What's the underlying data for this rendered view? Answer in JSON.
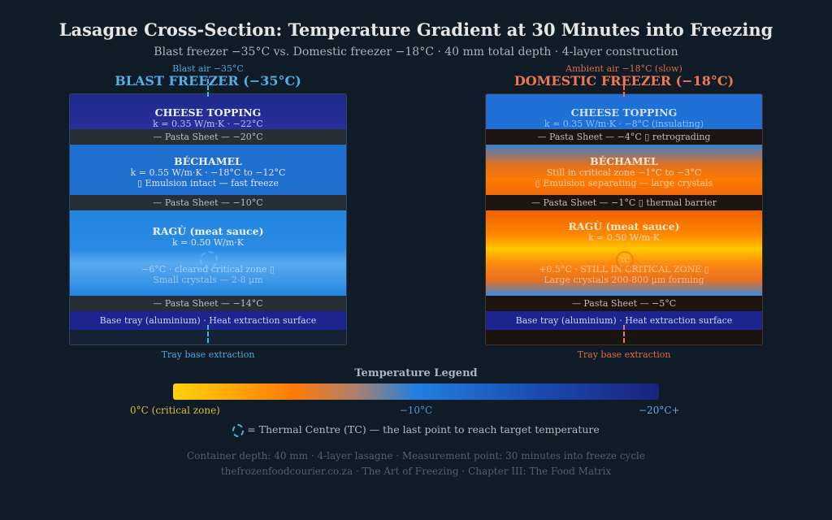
{
  "title": "Lasagne Cross-Section: Temperature Gradient at 30 Minutes into Freezing",
  "subtitle": "Blast freezer −35°C vs. Domestic freezer −18°C · 40 mm total depth · 4-layer construction",
  "blast": {
    "air": "Blast air −35°C",
    "heading": "BLAST FREEZER (−35°C)",
    "color": "#4fb0e8",
    "cheese_title": "CHEESE TOPPING",
    "cheese_sub": "k = 0.35 W/m·K · −22°C",
    "pasta1": "— Pasta Sheet — −20°C",
    "bech_title": "BÉCHAMEL",
    "bech_sub1": "k = 0.55 W/m·K · −18°C to −12°C",
    "bech_sub2": "▯ Emulsion intact — fast freeze",
    "pasta2": "— Pasta Sheet — −10°C",
    "ragu_title": "RAGÙ (meat sauce)",
    "ragu_sub": "k = 0.50 W/m·K",
    "ragu_note1": "−6°C · cleared critical zone ▯",
    "ragu_note2": "Small crystals — 2-8 μm",
    "pasta3": "— Pasta Sheet — −14°C",
    "base": "Base tray (aluminium) · Heat extraction surface",
    "tray": "Tray base extraction"
  },
  "domestic": {
    "air": "Ambient air −18°C (slow)",
    "heading": "DOMESTIC FREEZER (−18°C)",
    "color": "#f07850",
    "cheese_title": "CHEESE TOPPING",
    "cheese_sub": "k = 0.35 W/m·K · −8°C (insulating)",
    "pasta1": "— Pasta Sheet — −4°C ▯ retrograding",
    "bech_title": "BÉCHAMEL",
    "bech_sub1": "Still in critical zone −1°C to −3°C",
    "bech_sub2": "▯ Emulsion separating — large crystals",
    "pasta2": "— Pasta Sheet — −1°C ▯ thermal barrier",
    "ragu_title": "RAGÙ (meat sauce)",
    "ragu_sub": "k = 0.50 W/m·K",
    "tc": "TC",
    "ragu_note1": "+0.5°C · STILL IN CRITICAL ZONE ▯",
    "ragu_note2": "Large crystals 200-800 μm forming",
    "pasta3": "— Pasta Sheet — −5°C",
    "base": "Base tray (aluminium) · Heat extraction surface",
    "tray": "Tray base extraction"
  },
  "legend": {
    "title": "Temperature Legend",
    "left": "0°C (critical zone)",
    "mid": "−10°C",
    "right": "−20°C+",
    "tc_note": "= Thermal Centre (TC) — the last point to reach target temperature"
  },
  "footer": {
    "line1": "Container depth: 40 mm · 4-layer lasagne · Measurement point: 30 minutes into freeze cycle",
    "line2": "thefrozenfoodcourier.co.za · The Art of Freezing · Chapter III: The Food Matrix"
  }
}
